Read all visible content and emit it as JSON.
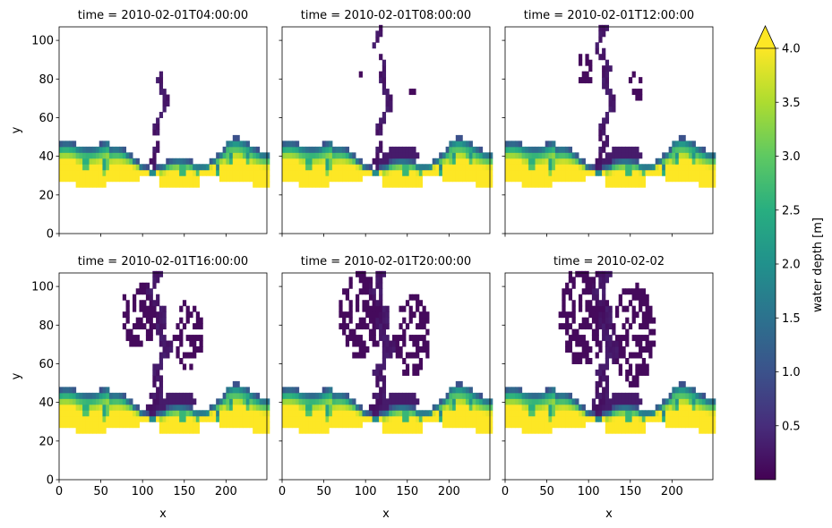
{
  "chart_data": {
    "type": "heatmap",
    "facet_layout": "2 rows x 3 columns",
    "xlabel": "x",
    "ylabel": "y",
    "xlim": [
      0,
      249
    ],
    "ylim": [
      0,
      107
    ],
    "xticks": [
      0,
      50,
      100,
      150,
      200
    ],
    "yticks": [
      0,
      20,
      40,
      60,
      80,
      100
    ],
    "colorbar": {
      "label": "water depth [m]",
      "min": 0.0,
      "max": 4.0,
      "extend": "max",
      "colormap": "viridis",
      "ticks": [
        0.5,
        1.0,
        1.5,
        2.0,
        2.5,
        3.0,
        3.5,
        4.0
      ],
      "tick_labels": [
        "0.5",
        "1.0",
        "1.5",
        "2.0",
        "2.5",
        "3.0",
        "3.5",
        "4.0"
      ]
    },
    "panels": [
      {
        "title": "time = 2010-02-01T04:00:00",
        "spread": 0.0,
        "channel_top": 84
      },
      {
        "title": "time = 2010-02-01T08:00:00",
        "spread": 0.1,
        "channel_top": 107
      },
      {
        "title": "time = 2010-02-01T12:00:00",
        "spread": 0.3,
        "channel_top": 107
      },
      {
        "title": "time = 2010-02-01T16:00:00",
        "spread": 0.65,
        "channel_top": 107
      },
      {
        "title": "time = 2010-02-01T20:00:00",
        "spread": 0.85,
        "channel_top": 107
      },
      {
        "title": "time = 2010-02-02",
        "spread": 1.0,
        "channel_top": 107
      }
    ]
  }
}
